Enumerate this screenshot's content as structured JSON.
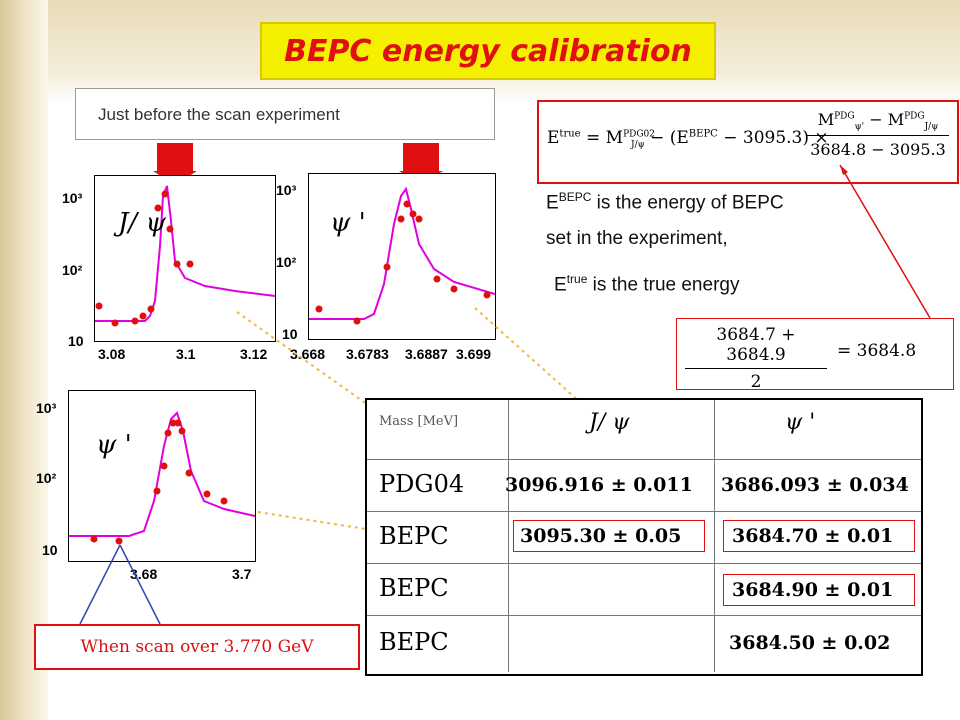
{
  "title": "BEPC energy calibration",
  "scan_label": "Just before the scan experiment",
  "plots": [
    {
      "label": "J/ ψ",
      "y_ticks": [
        "10³",
        "10²",
        "10"
      ],
      "x_ticks": [
        "3.08",
        "3.1",
        "3.12"
      ]
    },
    {
      "label": "ψ '",
      "y_ticks": [
        "10³",
        "10²",
        "10"
      ],
      "x_ticks": [
        "3.668",
        "3.6783",
        "3.6887",
        "3.699"
      ]
    },
    {
      "label": "ψ '",
      "y_ticks": [
        "10³",
        "10²",
        "10"
      ],
      "x_ticks": [
        "3.68",
        "3.7"
      ]
    }
  ],
  "formula": {
    "lhs": "E",
    "lhs_sup": "true",
    "rhs_text": "= M",
    "pdg02": "PDG02",
    "jpsi": "J/ψ",
    "bepc_term": "− (E",
    "bepc_sup": "BEPC",
    "minus_val": "− 3095.3) ×",
    "num_a": "M",
    "num_a_sup": "PDG",
    "num_a_sub": "ψ'",
    "num_b": "− M",
    "num_b_sup": "PDG",
    "num_b_sub": "J/ψ",
    "denominator": "3684.8 − 3095.3"
  },
  "desc": {
    "line1_pre": "E",
    "line1_sup": "BEPC",
    "line1_post": "is the energy of BEPC",
    "line2": "set in the experiment,",
    "line3_pre": "E",
    "line3_sup": "true",
    "line3_post": "is the true energy"
  },
  "average": {
    "numerator": "3684.7 + 3684.9",
    "denominator": "2",
    "result": "= 3684.8"
  },
  "table": {
    "header_label": "Mass [MeV]",
    "col1": "J/ ψ",
    "col2": "ψ '",
    "rows": [
      {
        "label": "PDG04",
        "jpsi": "3096.916 ± 0.011",
        "psip": "3686.093 ± 0.034"
      },
      {
        "label": "BEPC",
        "jpsi": "3095.30 ± 0.05",
        "psip": "3684.70 ± 0.01"
      },
      {
        "label": "BEPC",
        "jpsi": "",
        "psip": "3684.90 ± 0.01"
      },
      {
        "label": "BEPC",
        "jpsi": "",
        "psip": "3684.50 ± 0.02"
      }
    ]
  },
  "scan_note": "When scan over 3.770 GeV",
  "colors": {
    "title_bg": "#f4f000",
    "title_fg": "#e01010",
    "curve": "#e000e0",
    "points": "#e01010",
    "highlight": "#e01010",
    "connector": "#f0b840"
  },
  "icons": [
    "red-down-arrow-icon",
    "red-down-arrow-icon"
  ]
}
